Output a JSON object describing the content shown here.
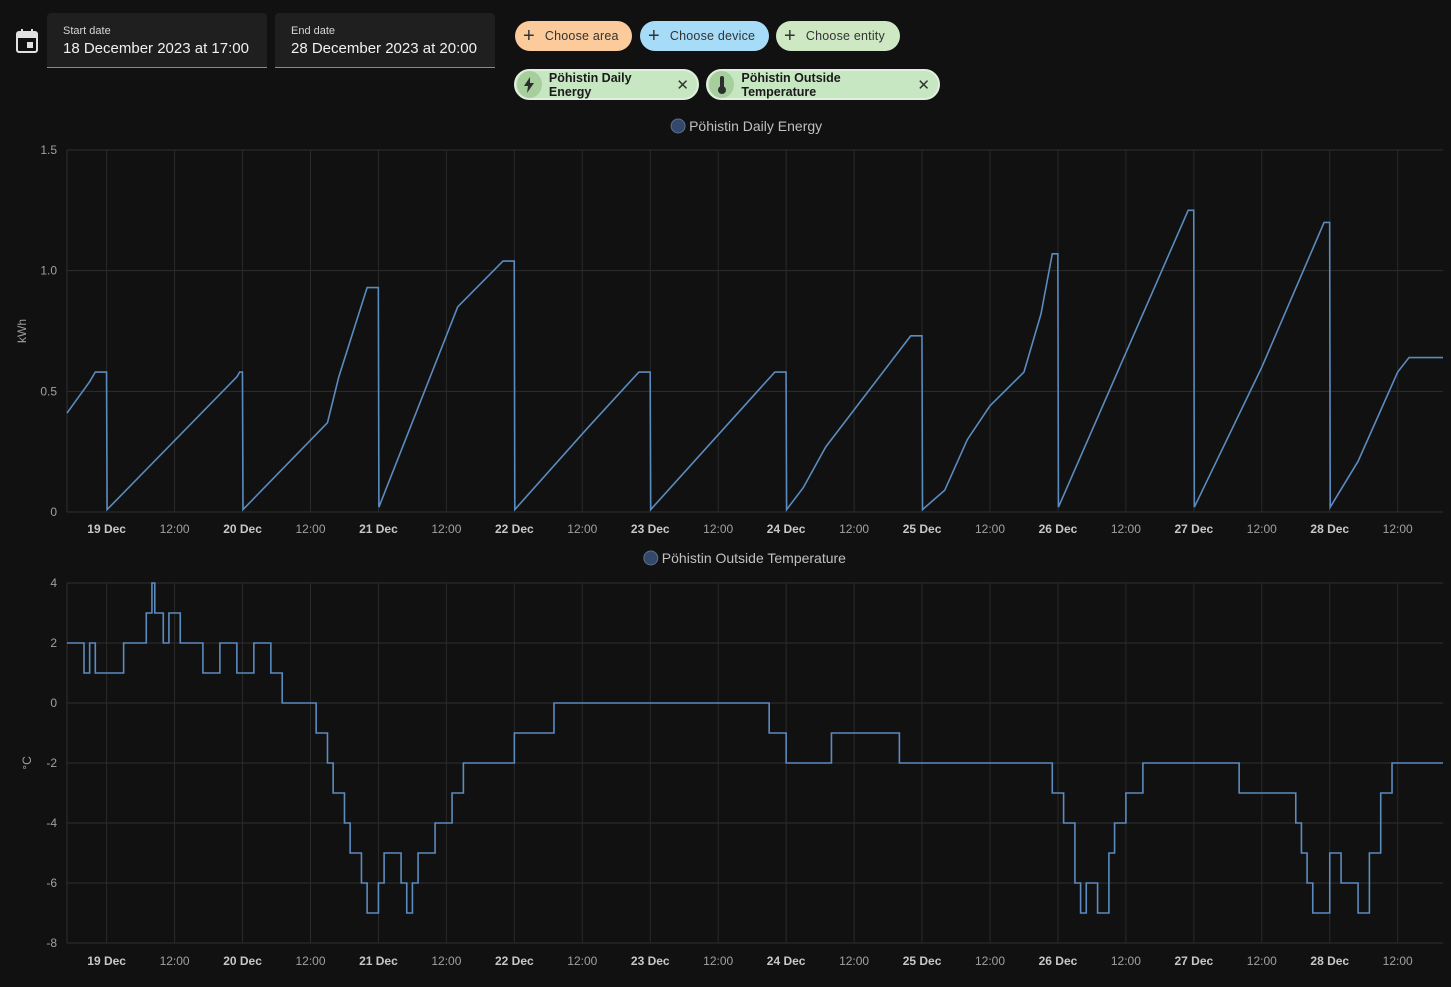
{
  "date_picker": {
    "icon": "calendar-icon",
    "start_label": "Start date",
    "start_value": "18 December 2023 at 17:00",
    "end_label": "End date",
    "end_value": "28 December 2023 at 20:00"
  },
  "target_buttons": [
    {
      "label": "Choose area",
      "color": "#fbcb9c"
    },
    {
      "label": "Choose device",
      "color": "#a7dcf8"
    },
    {
      "label": "Choose entity",
      "color": "#cfe8c4"
    }
  ],
  "selected_entities": [
    {
      "label": "Pöhistin Daily Energy",
      "icon": "lightning-bolt-icon"
    },
    {
      "label": "Pöhistin Outside Temperature",
      "icon": "thermometer-icon"
    }
  ],
  "accent_color": "#5b8bbf",
  "chart_data": [
    {
      "type": "line",
      "title": "",
      "legend": [
        "Pöhistin Daily Energy"
      ],
      "ylabel": "kWh",
      "ylim": [
        0,
        1.5
      ],
      "yticks": [
        "0",
        "0.5",
        "1.0",
        "1.5"
      ],
      "x_range": [
        "2023-12-18 17:00",
        "2023-12-28 20:00"
      ],
      "x_ticks": [
        "19 Dec",
        "12:00",
        "20 Dec",
        "12:00",
        "21 Dec",
        "12:00",
        "22 Dec",
        "12:00",
        "23 Dec",
        "12:00",
        "24 Dec",
        "12:00",
        "25 Dec",
        "12:00",
        "26 Dec",
        "12:00",
        "27 Dec",
        "12:00",
        "28 Dec",
        "12:00"
      ],
      "series": [
        {
          "name": "Pöhistin Daily Energy",
          "points": [
            [
              "2023-12-18 17:00",
              0.41
            ],
            [
              "2023-12-18 21:00",
              0.54
            ],
            [
              "2023-12-18 22:00",
              0.58
            ],
            [
              "2023-12-18 23:59",
              0.58
            ],
            [
              "2023-12-19 00:05",
              0.01
            ],
            [
              "2023-12-19 23:00",
              0.56
            ],
            [
              "2023-12-19 23:30",
              0.58
            ],
            [
              "2023-12-19 23:59",
              0.58
            ],
            [
              "2023-12-20 00:05",
              0.01
            ],
            [
              "2023-12-20 15:00",
              0.37
            ],
            [
              "2023-12-20 17:00",
              0.56
            ],
            [
              "2023-12-20 22:00",
              0.93
            ],
            [
              "2023-12-20 23:59",
              0.93
            ],
            [
              "2023-12-21 00:05",
              0.02
            ],
            [
              "2023-12-21 14:00",
              0.85
            ],
            [
              "2023-12-21 22:00",
              1.04
            ],
            [
              "2023-12-21 23:59",
              1.04
            ],
            [
              "2023-12-22 00:05",
              0.01
            ],
            [
              "2023-12-22 13:00",
              0.35
            ],
            [
              "2023-12-22 22:00",
              0.58
            ],
            [
              "2023-12-22 23:59",
              0.58
            ],
            [
              "2023-12-23 00:05",
              0.01
            ],
            [
              "2023-12-23 22:00",
              0.58
            ],
            [
              "2023-12-23 23:59",
              0.58
            ],
            [
              "2023-12-24 00:05",
              0.01
            ],
            [
              "2023-12-24 03:00",
              0.1
            ],
            [
              "2023-12-24 07:00",
              0.27
            ],
            [
              "2023-12-24 22:00",
              0.73
            ],
            [
              "2023-12-24 23:59",
              0.73
            ],
            [
              "2023-12-25 00:05",
              0.01
            ],
            [
              "2023-12-25 04:00",
              0.09
            ],
            [
              "2023-12-25 08:00",
              0.3
            ],
            [
              "2023-12-25 12:00",
              0.44
            ],
            [
              "2023-12-25 18:00",
              0.58
            ],
            [
              "2023-12-25 21:00",
              0.82
            ],
            [
              "2023-12-25 23:00",
              1.07
            ],
            [
              "2023-12-25 23:59",
              1.07
            ],
            [
              "2023-12-26 00:05",
              0.02
            ],
            [
              "2023-12-26 23:00",
              1.25
            ],
            [
              "2023-12-26 23:59",
              1.25
            ],
            [
              "2023-12-27 00:05",
              0.02
            ],
            [
              "2023-12-27 12:00",
              0.6
            ],
            [
              "2023-12-27 23:00",
              1.2
            ],
            [
              "2023-12-27 23:59",
              1.2
            ],
            [
              "2023-12-28 00:05",
              0.02
            ],
            [
              "2023-12-28 05:00",
              0.21
            ],
            [
              "2023-12-28 12:00",
              0.58
            ],
            [
              "2023-12-28 14:00",
              0.64
            ],
            [
              "2023-12-28 20:00",
              0.64
            ]
          ]
        }
      ]
    },
    {
      "type": "line",
      "title": "",
      "legend": [
        "Pöhistin Outside Temperature"
      ],
      "ylabel": "°C",
      "ylim": [
        -8,
        4
      ],
      "yticks": [
        "-8",
        "-6",
        "-4",
        "-2",
        "0",
        "2",
        "4"
      ],
      "x_range": [
        "2023-12-18 17:00",
        "2023-12-28 20:00"
      ],
      "x_ticks": [
        "19 Dec",
        "12:00",
        "20 Dec",
        "12:00",
        "21 Dec",
        "12:00",
        "22 Dec",
        "12:00",
        "23 Dec",
        "12:00",
        "24 Dec",
        "12:00",
        "25 Dec",
        "12:00",
        "26 Dec",
        "12:00",
        "27 Dec",
        "12:00",
        "28 Dec",
        "12:00"
      ],
      "series": [
        {
          "name": "Pöhistin Outside Temperature",
          "points": [
            [
              "2023-12-18 17:00",
              2
            ],
            [
              "2023-12-18 20:00",
              1
            ],
            [
              "2023-12-18 21:00",
              2
            ],
            [
              "2023-12-18 22:00",
              1
            ],
            [
              "2023-12-19 03:00",
              2
            ],
            [
              "2023-12-19 07:00",
              3
            ],
            [
              "2023-12-19 08:00",
              4
            ],
            [
              "2023-12-19 08:30",
              3
            ],
            [
              "2023-12-19 10:00",
              2
            ],
            [
              "2023-12-19 11:00",
              3
            ],
            [
              "2023-12-19 13:00",
              2
            ],
            [
              "2023-12-19 17:00",
              1
            ],
            [
              "2023-12-19 20:00",
              2
            ],
            [
              "2023-12-19 23:00",
              1
            ],
            [
              "2023-12-20 02:00",
              2
            ],
            [
              "2023-12-20 05:00",
              1
            ],
            [
              "2023-12-20 07:00",
              0
            ],
            [
              "2023-12-20 13:00",
              -1
            ],
            [
              "2023-12-20 15:00",
              -2
            ],
            [
              "2023-12-20 16:00",
              -3
            ],
            [
              "2023-12-20 18:00",
              -4
            ],
            [
              "2023-12-20 19:00",
              -5
            ],
            [
              "2023-12-20 21:00",
              -6
            ],
            [
              "2023-12-20 22:00",
              -7
            ],
            [
              "2023-12-21 00:00",
              -6
            ],
            [
              "2023-12-21 01:00",
              -5
            ],
            [
              "2023-12-21 04:00",
              -6
            ],
            [
              "2023-12-21 05:00",
              -7
            ],
            [
              "2023-12-21 06:00",
              -6
            ],
            [
              "2023-12-21 07:00",
              -5
            ],
            [
              "2023-12-21 10:00",
              -4
            ],
            [
              "2023-12-21 13:00",
              -3
            ],
            [
              "2023-12-21 15:00",
              -2
            ],
            [
              "2023-12-22 00:00",
              -1
            ],
            [
              "2023-12-22 07:00",
              0
            ],
            [
              "2023-12-23 21:00",
              -1
            ],
            [
              "2023-12-24 00:00",
              -2
            ],
            [
              "2023-12-24 08:00",
              -1
            ],
            [
              "2023-12-24 20:00",
              -2
            ],
            [
              "2023-12-25 23:00",
              -3
            ],
            [
              "2023-12-26 01:00",
              -4
            ],
            [
              "2023-12-26 03:00",
              -6
            ],
            [
              "2023-12-26 04:00",
              -7
            ],
            [
              "2023-12-26 05:00",
              -6
            ],
            [
              "2023-12-26 07:00",
              -7
            ],
            [
              "2023-12-26 09:00",
              -5
            ],
            [
              "2023-12-26 10:00",
              -4
            ],
            [
              "2023-12-26 12:00",
              -3
            ],
            [
              "2023-12-26 15:00",
              -2
            ],
            [
              "2023-12-27 08:00",
              -3
            ],
            [
              "2023-12-27 18:00",
              -4
            ],
            [
              "2023-12-27 19:00",
              -5
            ],
            [
              "2023-12-27 20:00",
              -6
            ],
            [
              "2023-12-27 21:00",
              -7
            ],
            [
              "2023-12-28 00:00",
              -5
            ],
            [
              "2023-12-28 02:00",
              -6
            ],
            [
              "2023-12-28 05:00",
              -7
            ],
            [
              "2023-12-28 07:00",
              -5
            ],
            [
              "2023-12-28 09:00",
              -3
            ],
            [
              "2023-12-28 11:00",
              -2
            ],
            [
              "2023-12-28 20:00",
              -2
            ]
          ]
        }
      ]
    }
  ]
}
